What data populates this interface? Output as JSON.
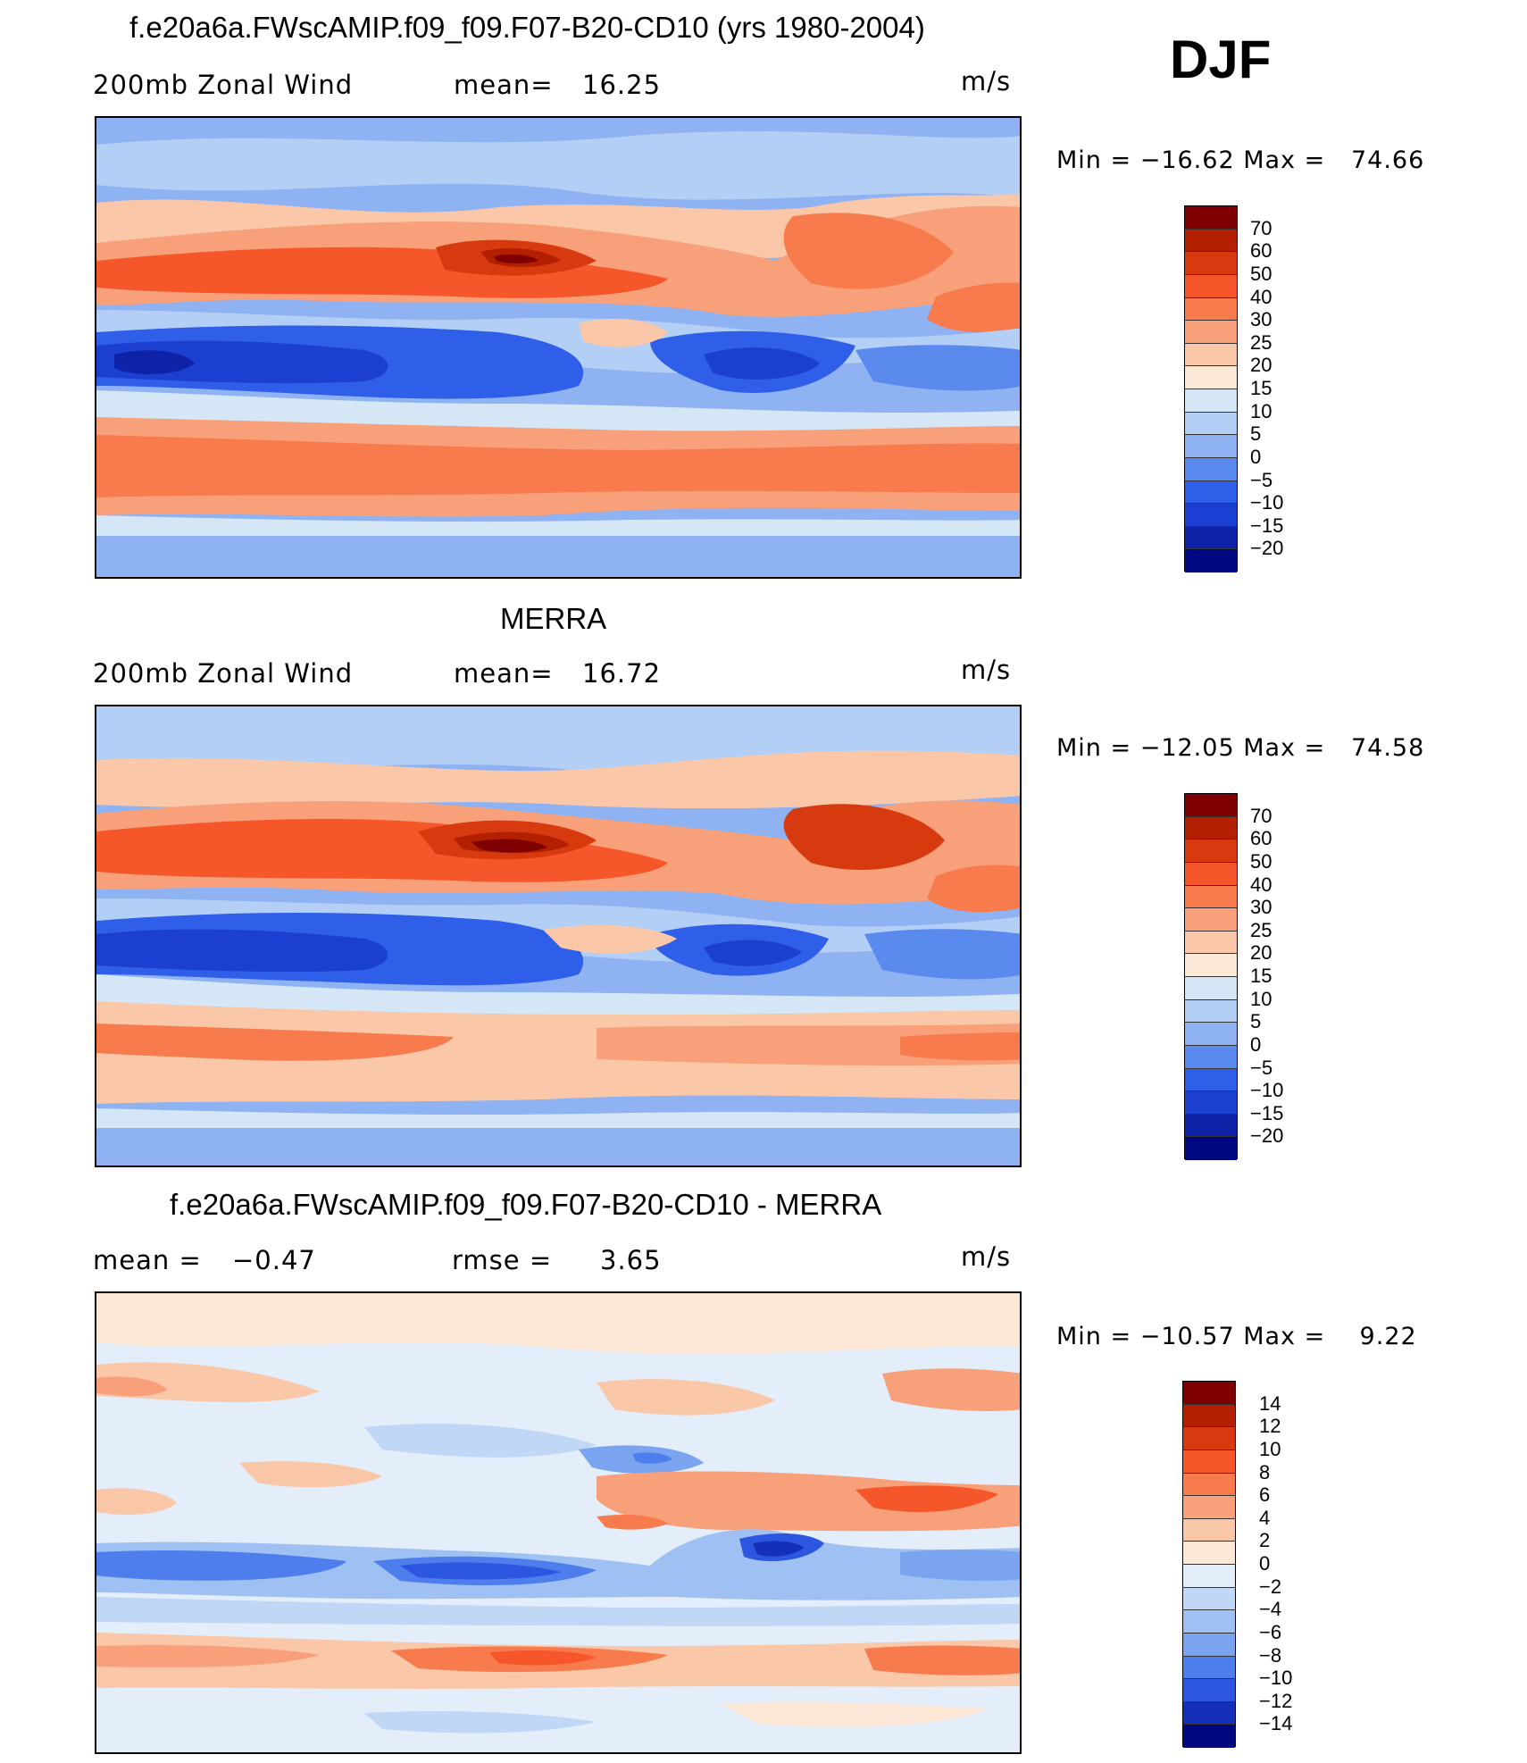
{
  "season": "DJF",
  "units": "m/s",
  "panels": [
    {
      "title": "f.e20a6a.FWscAMIP.f09_f09.F07-B20-CD10 (yrs 1980-2004)",
      "left_label": "200mb Zonal Wind",
      "stat_label": "mean=",
      "stat_value": "16.25",
      "units": "m/s",
      "minmax": "Min = −16.62 Max =   74.66",
      "colorbar_levels": [
        "70",
        "60",
        "50",
        "40",
        "30",
        "25",
        "20",
        "15",
        "10",
        "5",
        "0",
        "−5",
        "−10",
        "−15",
        "−20"
      ]
    },
    {
      "title": "MERRA",
      "left_label": "200mb Zonal Wind",
      "stat_label": "mean=",
      "stat_value": "16.72",
      "units": "m/s",
      "minmax": "Min = −12.05 Max =   74.58",
      "colorbar_levels": [
        "70",
        "60",
        "50",
        "40",
        "30",
        "25",
        "20",
        "15",
        "10",
        "5",
        "0",
        "−5",
        "−10",
        "−15",
        "−20"
      ]
    },
    {
      "title": "f.e20a6a.FWscAMIP.f09_f09.F07-B20-CD10 - MERRA",
      "left_label": "mean =",
      "left_value": "−0.47",
      "stat_label": "rmse =",
      "stat_value": "3.65",
      "units": "m/s",
      "minmax": "Min = −10.57 Max =    9.22",
      "colorbar_levels": [
        "14",
        "12",
        "10",
        "8",
        "6",
        "4",
        "2",
        "0",
        "−2",
        "−4",
        "−6",
        "−8",
        "−10",
        "−12",
        "−14"
      ]
    }
  ],
  "colors": {
    "abs_scale": [
      "#7f0000",
      "#b22000",
      "#d83a10",
      "#f5572a",
      "#f77b4d",
      "#f8a07a",
      "#fac8a8",
      "#fde7d6",
      "#d5e6f7",
      "#b3cff5",
      "#8fb2f2",
      "#5b8aee",
      "#2f5fe8",
      "#1b3fd0",
      "#0e22a8",
      "#000880"
    ],
    "diff_scale": [
      "#7f0000",
      "#b22000",
      "#d83a10",
      "#f5572a",
      "#f77b4d",
      "#f8a07a",
      "#fac8a8",
      "#fde7d6",
      "#e3eefa",
      "#c0d7f6",
      "#9ec0f3",
      "#7aa4f0",
      "#4d7eeb",
      "#2c55e0",
      "#1530b8",
      "#000880"
    ]
  }
}
